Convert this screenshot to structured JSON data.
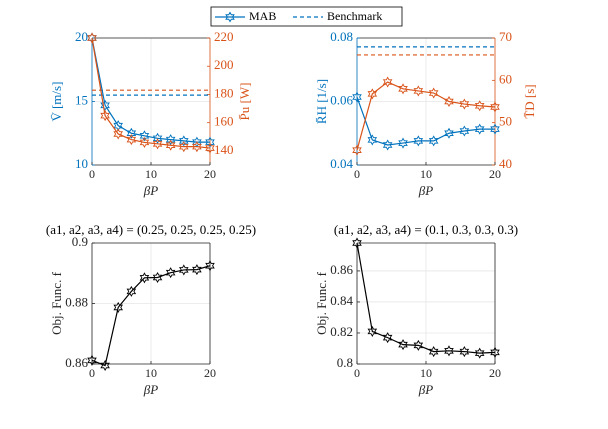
{
  "legend": [
    "MAB",
    "Benchmark"
  ],
  "chart_data": [
    {
      "type": "line",
      "xlabel": "βP",
      "ylabel": "V̄ [m/s]",
      "y2label": "P̄u [W]",
      "x": [
        0,
        2.22,
        4.44,
        6.67,
        8.89,
        11.11,
        13.33,
        15.56,
        17.78,
        20
      ],
      "xlim": [
        0,
        20
      ],
      "xticks": [
        0,
        10,
        20
      ],
      "ylim": [
        10,
        20
      ],
      "yticks": [
        10,
        15,
        20
      ],
      "ycolor": "#0072bd",
      "y2lim": [
        130,
        220
      ],
      "y2ticks": [
        140,
        160,
        180,
        200,
        220
      ],
      "y2color": "#d95319",
      "grid": true,
      "series": [
        {
          "color": "#0072bd",
          "values": [
            20,
            14.7,
            13.1,
            12.5,
            12.3,
            12.1,
            12.0,
            11.9,
            11.8,
            11.8
          ]
        },
        {
          "color": "#d95319",
          "axis": "y2",
          "values": [
            220,
            165,
            152,
            148,
            146,
            145,
            144,
            143,
            143,
            142
          ]
        }
      ],
      "benchmarks": [
        {
          "color": "#0072bd",
          "value": 15.5
        },
        {
          "color": "#d95319",
          "axis": "y2",
          "value": 183
        }
      ]
    },
    {
      "type": "line",
      "xlabel": "βP",
      "ylabel": "R̄H [1/s]",
      "y2label": "T̄D [s]",
      "x": [
        0,
        2.22,
        4.44,
        6.67,
        8.89,
        11.11,
        13.33,
        15.56,
        17.78,
        20
      ],
      "xlim": [
        0,
        20
      ],
      "xticks": [
        0,
        10,
        20
      ],
      "ylim": [
        0.04,
        0.08
      ],
      "yticks": [
        0.04,
        0.06,
        0.08
      ],
      "ycolor": "#0072bd",
      "y2lim": [
        40,
        70
      ],
      "y2ticks": [
        40,
        50,
        60,
        70
      ],
      "y2color": "#d95319",
      "grid": true,
      "series": [
        {
          "color": "#0072bd",
          "values": [
            0.0614,
            0.0479,
            0.0463,
            0.0469,
            0.0476,
            0.0476,
            0.05,
            0.0507,
            0.0513,
            0.0513
          ]
        },
        {
          "color": "#d95319",
          "axis": "y2",
          "values": [
            43.5,
            56.8,
            59.6,
            58,
            57.5,
            57,
            55,
            54.4,
            54,
            53.7
          ]
        }
      ],
      "benchmarks": [
        {
          "color": "#0072bd",
          "value": 0.0772
        },
        {
          "color": "#d95319",
          "axis": "y2",
          "value": 66
        }
      ]
    },
    {
      "type": "line",
      "title": "(a1, a2, a3, a4) = (0.25, 0.25, 0.25, 0.25)",
      "xlabel": "βP",
      "ylabel": "Obj. Func. f",
      "x": [
        0,
        2.22,
        4.44,
        6.67,
        8.89,
        11.11,
        13.33,
        15.56,
        17.78,
        20
      ],
      "xlim": [
        0,
        20
      ],
      "xticks": [
        0,
        10,
        20
      ],
      "ylim": [
        0.86,
        0.9
      ],
      "yticks": [
        0.86,
        0.88,
        0.9
      ],
      "grid": true,
      "series": [
        {
          "color": "#000000",
          "values": [
            0.8612,
            0.8595,
            0.8787,
            0.884,
            0.8885,
            0.8886,
            0.8902,
            0.8911,
            0.8912,
            0.8925
          ]
        }
      ]
    },
    {
      "type": "line",
      "title": "(a1, a2, a3, a4) = (0.1, 0.3, 0.3, 0.3)",
      "xlabel": "βP",
      "ylabel": "Obj. Func. f",
      "x": [
        0,
        2.22,
        4.44,
        6.67,
        8.89,
        11.11,
        13.33,
        15.56,
        17.78,
        20
      ],
      "xlim": [
        0,
        20
      ],
      "xticks": [
        0,
        10,
        20
      ],
      "ylim": [
        0.8,
        0.878
      ],
      "yticks": [
        0.8,
        0.82,
        0.84,
        0.86
      ],
      "grid": true,
      "series": [
        {
          "color": "#000000",
          "values": [
            0.878,
            0.821,
            0.817,
            0.8125,
            0.812,
            0.808,
            0.8085,
            0.808,
            0.807,
            0.8075
          ]
        }
      ]
    }
  ]
}
